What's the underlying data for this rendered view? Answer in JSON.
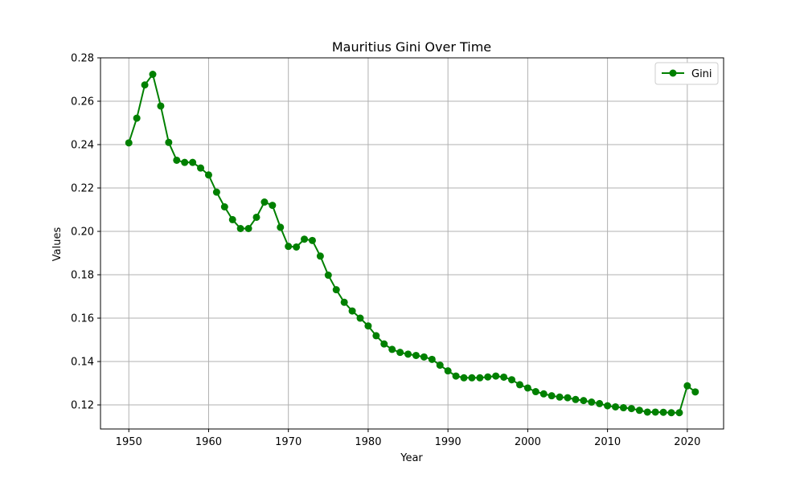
{
  "chart_data": {
    "type": "line",
    "title": "Mauritius Gini Over Time",
    "xlabel": "Year",
    "ylabel": "Values",
    "xlim": [
      1946.45,
      2024.55
    ],
    "ylim": [
      0.1089,
      0.28
    ],
    "xticks": [
      1950,
      1960,
      1970,
      1980,
      1990,
      2000,
      2010,
      2020
    ],
    "yticks": [
      0.12,
      0.14,
      0.16,
      0.18,
      0.2,
      0.22,
      0.24,
      0.26,
      0.28
    ],
    "ytick_labels": [
      "0.12",
      "0.14",
      "0.16",
      "0.18",
      "0.20",
      "0.22",
      "0.24",
      "0.26",
      "0.28"
    ],
    "grid": true,
    "legend_position": "top-right",
    "color": "#008000",
    "series": [
      {
        "name": "Gini",
        "x": [
          1950,
          1951,
          1952,
          1953,
          1954,
          1955,
          1956,
          1957,
          1958,
          1959,
          1960,
          1961,
          1962,
          1963,
          1964,
          1965,
          1966,
          1967,
          1968,
          1969,
          1970,
          1971,
          1972,
          1973,
          1974,
          1975,
          1976,
          1977,
          1978,
          1979,
          1980,
          1981,
          1982,
          1983,
          1984,
          1985,
          1986,
          1987,
          1988,
          1989,
          1990,
          1991,
          1992,
          1993,
          1994,
          1995,
          1996,
          1997,
          1998,
          1999,
          2000,
          2001,
          2002,
          2003,
          2004,
          2005,
          2006,
          2007,
          2008,
          2009,
          2010,
          2011,
          2012,
          2013,
          2014,
          2015,
          2016,
          2017,
          2018,
          2019,
          2020,
          2021
        ],
        "values": [
          0.2408,
          0.2522,
          0.2675,
          0.2724,
          0.2578,
          0.241,
          0.2328,
          0.2318,
          0.2318,
          0.2292,
          0.226,
          0.2181,
          0.2113,
          0.2054,
          0.2013,
          0.2013,
          0.2065,
          0.2135,
          0.212,
          0.2019,
          0.1931,
          0.1928,
          0.1964,
          0.1958,
          0.1886,
          0.1798,
          0.1731,
          0.1673,
          0.1633,
          0.16,
          0.1564,
          0.1519,
          0.1481,
          0.1456,
          0.1442,
          0.1434,
          0.1428,
          0.1421,
          0.141,
          0.1383,
          0.1357,
          0.1333,
          0.1325,
          0.1325,
          0.1325,
          0.1329,
          0.1333,
          0.1328,
          0.1316,
          0.1293,
          0.1278,
          0.1261,
          0.1251,
          0.1242,
          0.1236,
          0.1233,
          0.1225,
          0.122,
          0.1213,
          0.1206,
          0.1196,
          0.1191,
          0.1187,
          0.1183,
          0.1175,
          0.1167,
          0.1167,
          0.1166,
          0.1164,
          0.1164,
          0.1288,
          0.126
        ]
      }
    ]
  }
}
